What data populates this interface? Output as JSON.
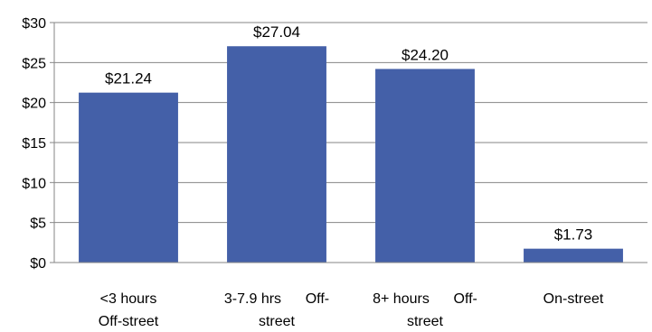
{
  "chart_data": {
    "type": "bar",
    "title": "",
    "xlabel": "",
    "ylabel": "",
    "ylim": [
      0,
      30
    ],
    "y_ticks": [
      "$0",
      "$5",
      "$10",
      "$15",
      "$20",
      "$25",
      "$30"
    ],
    "y_tick_values": [
      0,
      5,
      10,
      15,
      20,
      25,
      30
    ],
    "categories": [
      [
        "<3 hours",
        "Off-street"
      ],
      [
        "3-7.9 hrs      Off-",
        "street"
      ],
      [
        "8+ hours      Off-",
        "street"
      ],
      [
        "On-street"
      ]
    ],
    "values": [
      21.24,
      27.04,
      24.2,
      1.73
    ],
    "data_labels": [
      "$21.24",
      "$27.04",
      "$24.20",
      "$1.73"
    ],
    "grid": true,
    "legend": "none",
    "colors": {
      "bar": "#4460A8",
      "grid": "#868686",
      "axis": "#868686"
    }
  }
}
